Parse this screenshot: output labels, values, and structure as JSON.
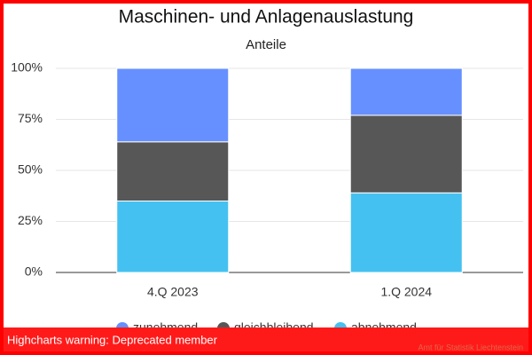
{
  "chart_data": {
    "type": "stacked_bar",
    "title": "Maschinen- und Anlagenauslastung",
    "subtitle": "Anteile",
    "categories": [
      "4.Q 2023",
      "1.Q 2024"
    ],
    "series": [
      {
        "name": "zunehmend",
        "color": "#6690ff",
        "values": [
          36,
          23
        ]
      },
      {
        "name": "gleichbleibend",
        "color": "#575757",
        "values": [
          29,
          38
        ]
      },
      {
        "name": "abnehmend",
        "color": "#45c1f1",
        "values": [
          35,
          39
        ]
      }
    ],
    "ylim": [
      0,
      100
    ],
    "yticks": [
      {
        "value": 0,
        "label": "0%"
      },
      {
        "value": 25,
        "label": "25%"
      },
      {
        "value": 50,
        "label": "50%"
      },
      {
        "value": 75,
        "label": "75%"
      },
      {
        "value": 100,
        "label": "100%"
      }
    ],
    "grid": true,
    "warning": "Highcharts warning: Deprecated member",
    "credit": "Amt für Statistik Liechtenstein"
  }
}
